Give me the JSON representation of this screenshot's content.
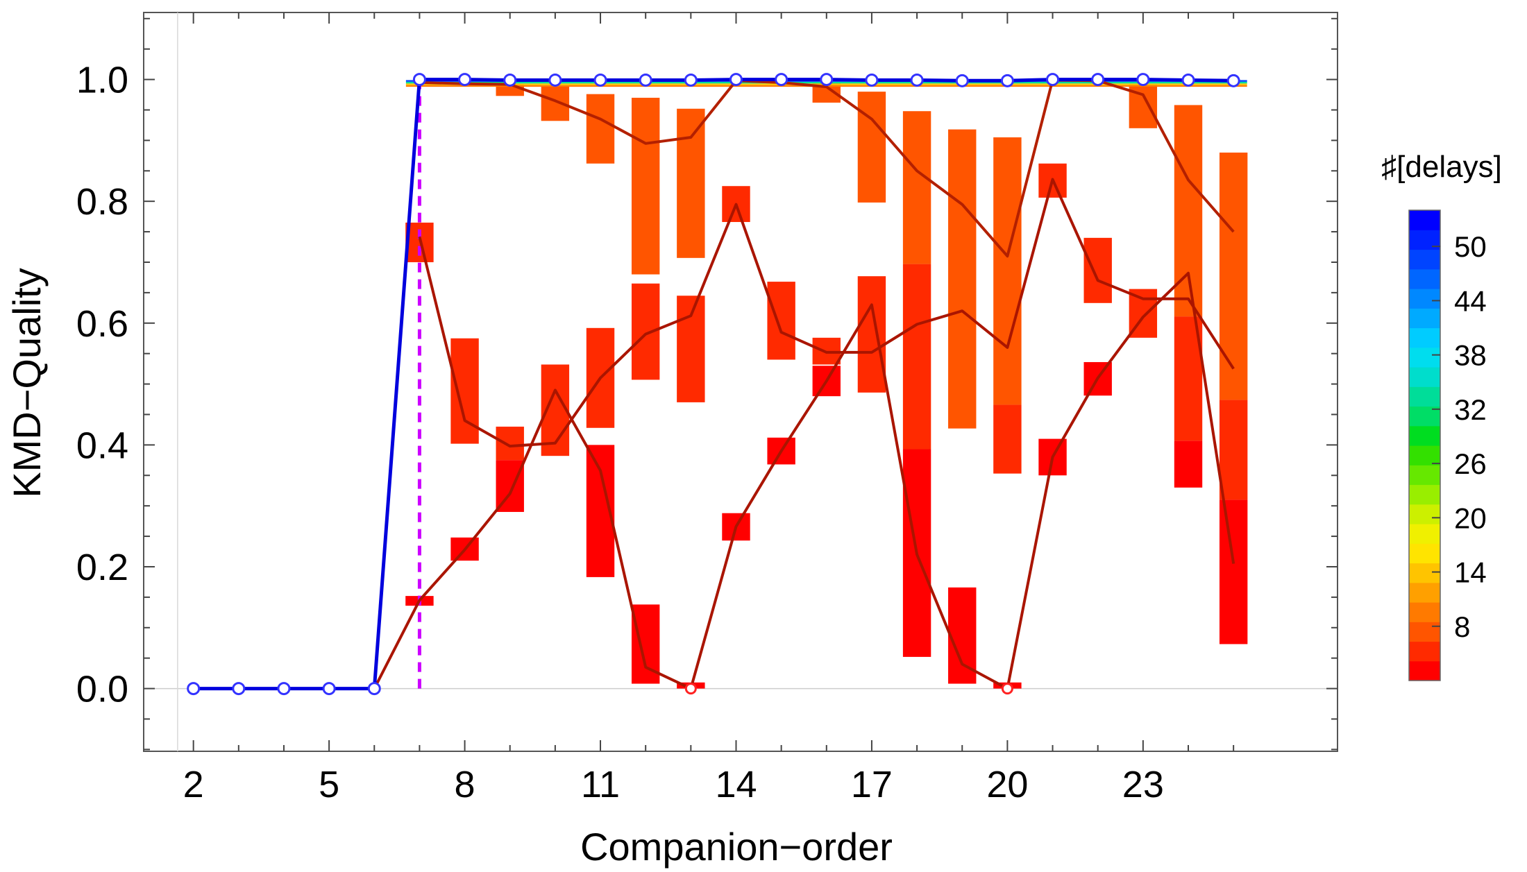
{
  "chart_data": {
    "type": "line",
    "title": "",
    "xlabel": "Companion−order",
    "ylabel": "KMD−Quality",
    "xlim": [
      0.9,
      27.3
    ],
    "ylim": [
      -0.103,
      1.11
    ],
    "x_ticks": [
      2,
      5,
      8,
      11,
      14,
      17,
      20,
      23
    ],
    "x_tick_labels": [
      "2",
      "5",
      "8",
      "11",
      "14",
      "17",
      "20",
      "23"
    ],
    "y_ticks": [
      0,
      0.2,
      0.4,
      0.6,
      0.8,
      1.0
    ],
    "y_tick_labels": [
      "0.0",
      "0.2",
      "0.4",
      "0.6",
      "0.8",
      "1.0"
    ],
    "grid": false,
    "colorbar": {
      "title": "♯[delays]",
      "ticks": [
        8,
        14,
        20,
        26,
        32,
        38,
        44,
        50
      ],
      "tick_labels": [
        "8",
        "14",
        "20",
        "26",
        "32",
        "38",
        "44",
        "50"
      ],
      "range": [
        2,
        54
      ],
      "colors": [
        "#ff0000",
        "#ff2a00",
        "#ff5500",
        "#ff7a00",
        "#ffa000",
        "#ffc400",
        "#ffe400",
        "#f0f000",
        "#ccf000",
        "#99ee00",
        "#66e800",
        "#33e000",
        "#00dd20",
        "#00dd66",
        "#00dd99",
        "#00ddcc",
        "#00ddee",
        "#00ccff",
        "#00aaff",
        "#0088ff",
        "#0066ff",
        "#0044ff",
        "#0022ff",
        "#0000ff"
      ]
    },
    "marker_line": {
      "x": 7,
      "y_from": 0,
      "y_to": 1.0,
      "color": "#cc00ff"
    },
    "boxes": [
      {
        "x": 7,
        "low": 0.7,
        "high": 0.765,
        "color": "#ff2a00"
      },
      {
        "x": 7,
        "low": 0.136,
        "high": 0.152,
        "color": "#ff0000"
      },
      {
        "x": 8,
        "low": 0.402,
        "high": 0.575,
        "color": "#ff2a00"
      },
      {
        "x": 8,
        "low": 0.21,
        "high": 0.248,
        "color": "#ff0000"
      },
      {
        "x": 9,
        "low": 0.375,
        "high": 0.43,
        "color": "#ff2a00"
      },
      {
        "x": 9,
        "low": 0.29,
        "high": 0.375,
        "color": "#ff0000"
      },
      {
        "x": 9,
        "low": 0.973,
        "high": 0.992,
        "color": "#ff5500"
      },
      {
        "x": 10,
        "low": 0.382,
        "high": 0.532,
        "color": "#ff2a00"
      },
      {
        "x": 10,
        "low": 0.932,
        "high": 0.99,
        "color": "#ff5500"
      },
      {
        "x": 11,
        "low": 0.428,
        "high": 0.592,
        "color": "#ff2a00"
      },
      {
        "x": 11,
        "low": 0.183,
        "high": 0.4,
        "color": "#ff0000"
      },
      {
        "x": 11,
        "low": 0.862,
        "high": 0.976,
        "color": "#ff5500"
      },
      {
        "x": 12,
        "low": 0.507,
        "high": 0.665,
        "color": "#ff2a00"
      },
      {
        "x": 12,
        "low": 0.008,
        "high": 0.138,
        "color": "#ff0000"
      },
      {
        "x": 12,
        "low": 0.68,
        "high": 0.97,
        "color": "#ff5500"
      },
      {
        "x": 13,
        "low": 0.47,
        "high": 0.645,
        "color": "#ff2a00"
      },
      {
        "x": 13,
        "low": 0.0,
        "high": 0.01,
        "color": "#ff0000"
      },
      {
        "x": 13,
        "low": 0.707,
        "high": 0.952,
        "color": "#ff5500"
      },
      {
        "x": 14,
        "low": 0.766,
        "high": 0.825,
        "color": "#ff2a00"
      },
      {
        "x": 14,
        "low": 0.243,
        "high": 0.288,
        "color": "#ff0000"
      },
      {
        "x": 15,
        "low": 0.54,
        "high": 0.668,
        "color": "#ff2a00"
      },
      {
        "x": 15,
        "low": 0.368,
        "high": 0.412,
        "color": "#ff0000"
      },
      {
        "x": 16,
        "low": 0.532,
        "high": 0.576,
        "color": "#ff2a00"
      },
      {
        "x": 16,
        "low": 0.48,
        "high": 0.53,
        "color": "#ff0000"
      },
      {
        "x": 16,
        "low": 0.962,
        "high": 0.995,
        "color": "#ff5500"
      },
      {
        "x": 17,
        "low": 0.486,
        "high": 0.677,
        "color": "#ff2a00"
      },
      {
        "x": 17,
        "low": 0.798,
        "high": 0.98,
        "color": "#ff5500"
      },
      {
        "x": 18,
        "low": 0.052,
        "high": 0.393,
        "color": "#ff0000"
      },
      {
        "x": 18,
        "low": 0.393,
        "high": 0.697,
        "color": "#ff2a00"
      },
      {
        "x": 18,
        "low": 0.697,
        "high": 0.948,
        "color": "#ff5500"
      },
      {
        "x": 19,
        "low": 0.008,
        "high": 0.166,
        "color": "#ff0000"
      },
      {
        "x": 19,
        "low": 0.427,
        "high": 0.918,
        "color": "#ff5500"
      },
      {
        "x": 20,
        "low": 0.353,
        "high": 0.466,
        "color": "#ff2a00"
      },
      {
        "x": 20,
        "low": 0.466,
        "high": 0.905,
        "color": "#ff5500"
      },
      {
        "x": 20,
        "low": 0.0,
        "high": 0.01,
        "color": "#ff0000"
      },
      {
        "x": 21,
        "low": 0.806,
        "high": 0.862,
        "color": "#ff2a00"
      },
      {
        "x": 21,
        "low": 0.35,
        "high": 0.41,
        "color": "#ff0000"
      },
      {
        "x": 22,
        "low": 0.633,
        "high": 0.74,
        "color": "#ff2a00"
      },
      {
        "x": 22,
        "low": 0.481,
        "high": 0.536,
        "color": "#ff0000"
      },
      {
        "x": 23,
        "low": 0.576,
        "high": 0.656,
        "color": "#ff2a00"
      },
      {
        "x": 23,
        "low": 0.92,
        "high": 0.992,
        "color": "#ff5500"
      },
      {
        "x": 24,
        "low": 0.33,
        "high": 0.407,
        "color": "#ff0000"
      },
      {
        "x": 24,
        "low": 0.407,
        "high": 0.611,
        "color": "#ff2a00"
      },
      {
        "x": 24,
        "low": 0.611,
        "high": 0.958,
        "color": "#ff5500"
      },
      {
        "x": 25,
        "low": 0.073,
        "high": 0.31,
        "color": "#ff0000"
      },
      {
        "x": 25,
        "low": 0.31,
        "high": 0.474,
        "color": "#ff2a00"
      },
      {
        "x": 25,
        "low": 0.474,
        "high": 0.88,
        "color": "#ff5500"
      }
    ],
    "top_band": {
      "x_from": 7,
      "x_to": 25,
      "low": 0.988,
      "high": 0.999,
      "colors": [
        "#ff7a00",
        "#ffc400",
        "#00dd99",
        "#0044ff"
      ]
    },
    "series": [
      {
        "color": "#0000dd",
        "x": [
          2,
          3,
          4,
          5,
          6,
          7,
          8,
          9,
          10,
          11,
          12,
          13,
          14,
          15,
          16,
          17,
          18,
          19,
          20,
          21,
          22,
          23,
          24,
          25
        ],
        "y": [
          0,
          0,
          0,
          0,
          0,
          1.0,
          1.0,
          0.999,
          0.999,
          0.999,
          0.999,
          0.999,
          1.0,
          1.0,
          1.0,
          0.999,
          0.999,
          0.998,
          0.998,
          1.0,
          1.0,
          1.0,
          0.999,
          0.998
        ],
        "markers": true
      },
      {
        "color": "#b32000",
        "x": [
          7,
          8,
          9,
          10,
          11,
          12,
          13,
          14,
          15,
          16,
          17,
          18,
          19,
          20,
          21,
          22,
          23,
          24,
          25
        ],
        "y": [
          0.995,
          0.993,
          0.992,
          0.965,
          0.935,
          0.895,
          0.905,
          0.998,
          0.995,
          0.988,
          0.935,
          0.85,
          0.795,
          0.71,
          0.999,
          0.998,
          0.975,
          0.835,
          0.75
        ]
      },
      {
        "color": "#aa1500",
        "x": [
          7,
          8,
          9,
          10,
          11,
          12,
          13,
          14,
          15,
          16,
          17,
          18,
          19,
          20,
          21,
          22,
          23,
          24,
          25
        ],
        "y": [
          0.742,
          0.44,
          0.398,
          0.403,
          0.51,
          0.582,
          0.612,
          0.795,
          0.585,
          0.552,
          0.552,
          0.598,
          0.62,
          0.56,
          0.836,
          0.67,
          0.64,
          0.64,
          0.525
        ]
      },
      {
        "color": "#aa1500",
        "x": [
          6,
          7,
          8,
          9,
          10,
          11,
          12,
          13,
          14,
          15,
          16,
          17,
          18,
          19,
          20,
          21,
          22,
          23,
          24,
          25
        ],
        "y": [
          0,
          0.145,
          0.228,
          0.32,
          0.49,
          0.358,
          0.035,
          0.0,
          0.266,
          0.39,
          0.505,
          0.63,
          0.22,
          0.04,
          0.0,
          0.38,
          0.51,
          0.61,
          0.682,
          0.205
        ]
      }
    ],
    "hollow_markers_red": [
      {
        "x": 13,
        "y": 0.0
      },
      {
        "x": 20,
        "y": 0.0
      }
    ]
  }
}
